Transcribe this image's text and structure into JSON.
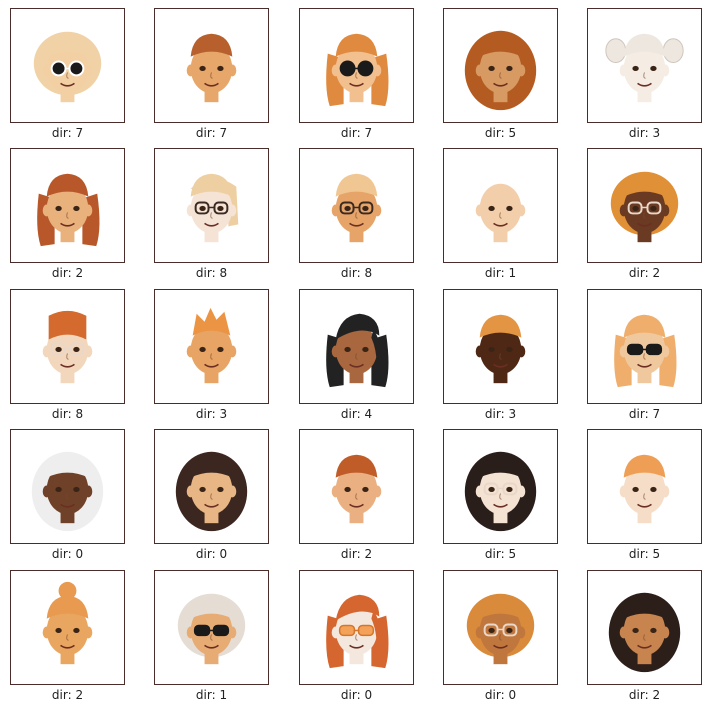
{
  "panels": [
    {
      "caption": "dir: 7",
      "skin": "#f3cfa4",
      "hair": "#f1d2a6",
      "hairStyle": "curly",
      "eyes": "sunglasses-round-white"
    },
    {
      "caption": "dir: 7",
      "skin": "#e7a66a",
      "hair": "#b75f2d",
      "hairStyle": "short-curly",
      "eyes": "plain"
    },
    {
      "caption": "dir: 7",
      "skin": "#f2bf8f",
      "hair": "#e08a3f",
      "hairStyle": "long",
      "eyes": "sunglasses-round-black"
    },
    {
      "caption": "dir: 5",
      "skin": "#d79a63",
      "hair": "#b45b22",
      "hairStyle": "locs",
      "eyes": "plain"
    },
    {
      "caption": "dir: 3",
      "skin": "#f5ece4",
      "hair": "#ede7df",
      "hairStyle": "pigtails",
      "eyes": "plain"
    },
    {
      "caption": "dir: 2",
      "skin": "#e9b17c",
      "hair": "#b8582a",
      "hairStyle": "long",
      "eyes": "plain"
    },
    {
      "caption": "dir: 8",
      "skin": "#f5e3d6",
      "hair": "#eecfa1",
      "hairStyle": "bob",
      "eyes": "glasses-dark"
    },
    {
      "caption": "dir: 8",
      "skin": "#e6a469",
      "hair": "#f0c792",
      "hairStyle": "short",
      "eyes": "glasses-dark"
    },
    {
      "caption": "dir: 1",
      "skin": "#f3ceaa",
      "hair": "#f2cfa5",
      "hairStyle": "bald",
      "eyes": "plain"
    },
    {
      "caption": "dir: 2",
      "skin": "#6b3a22",
      "hair": "#e09036",
      "hairStyle": "afro",
      "eyes": "glasses-light"
    },
    {
      "caption": "dir: 8",
      "skin": "#f3d7bd",
      "hair": "#d46a2d",
      "hairStyle": "tall",
      "eyes": "glasses-light"
    },
    {
      "caption": "dir: 3",
      "skin": "#e7a465",
      "hair": "#eb9444",
      "hairStyle": "spiky",
      "eyes": "plain"
    },
    {
      "caption": "dir: 4",
      "skin": "#a8673e",
      "hair": "#222222",
      "hairStyle": "side-long",
      "eyes": "plain"
    },
    {
      "caption": "dir: 3",
      "skin": "#4f2815",
      "hair": "#e39543",
      "hairStyle": "short-curly",
      "eyes": "plain"
    },
    {
      "caption": "dir: 7",
      "skin": "#f0c89d",
      "hair": "#efae6c",
      "hairStyle": "long",
      "eyes": "sunglasses-black"
    },
    {
      "caption": "dir: 0",
      "skin": "#6f4128",
      "hair": "#eeeeee",
      "hairStyle": "locs",
      "eyes": "plain"
    },
    {
      "caption": "dir: 0",
      "skin": "#e8b584",
      "hair": "#3b2620",
      "hairStyle": "long-curly",
      "eyes": "plain"
    },
    {
      "caption": "dir: 2",
      "skin": "#eab081",
      "hair": "#bf5c28",
      "hairStyle": "short-curly",
      "eyes": "plain"
    },
    {
      "caption": "dir: 5",
      "skin": "#f4e2d3",
      "hair": "#2a1e1a",
      "hairStyle": "long-curly",
      "eyes": "glasses-light"
    },
    {
      "caption": "dir: 5",
      "skin": "#f5ddc8",
      "hair": "#ef9f55",
      "hairStyle": "short",
      "eyes": "plain"
    },
    {
      "caption": "dir: 2",
      "skin": "#e9a661",
      "hair": "#e89a50",
      "hairStyle": "bun",
      "eyes": "plain"
    },
    {
      "caption": "dir: 1",
      "skin": "#e7ab74",
      "hair": "#e5ddd4",
      "hairStyle": "curly",
      "eyes": "sunglasses-black"
    },
    {
      "caption": "dir: 0",
      "skin": "#f4e8de",
      "hair": "#d66630",
      "hairStyle": "side-long",
      "eyes": "sunglasses-orange"
    },
    {
      "caption": "dir: 0",
      "skin": "#c0773e",
      "hair": "#d98a3a",
      "hairStyle": "afro",
      "eyes": "glasses-light"
    },
    {
      "caption": "dir: 2",
      "skin": "#c7844f",
      "hair": "#2c1f1a",
      "hairStyle": "long-curly",
      "eyes": "plain"
    }
  ]
}
